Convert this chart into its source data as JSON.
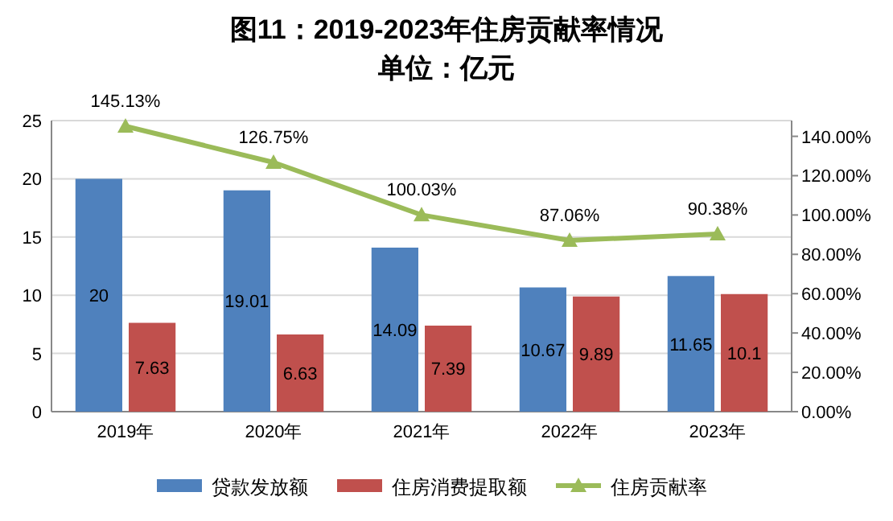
{
  "chart_data": {
    "type": "bar",
    "title": "图11：2019-2023年住房贡献率情况",
    "subtitle": "单位：亿元",
    "categories": [
      "2019年",
      "2020年",
      "2021年",
      "2022年",
      "2023年"
    ],
    "series": [
      {
        "name": "贷款发放额",
        "color": "#4f81bd",
        "values": [
          20,
          19.01,
          14.09,
          10.67,
          11.65
        ],
        "value_labels": [
          "20",
          "19.01",
          "14.09",
          "10.67",
          "11.65"
        ]
      },
      {
        "name": "住房消费提取额",
        "color": "#c0504d",
        "values": [
          7.63,
          6.63,
          7.39,
          9.89,
          10.1
        ],
        "value_labels": [
          "7.63",
          "6.63",
          "7.39",
          "9.89",
          "10.1"
        ]
      },
      {
        "name": "住房贡献率",
        "type": "line",
        "axis": "y2",
        "color": "#9bbb59",
        "marker": "triangle",
        "values": [
          145.13,
          126.75,
          100.03,
          87.06,
          90.38
        ],
        "value_labels": [
          "145.13%",
          "126.75%",
          "100.03%",
          "87.06%",
          "90.38%"
        ]
      }
    ],
    "ylim": [
      0,
      25
    ],
    "yticks": [
      0,
      5,
      10,
      15,
      20,
      25
    ],
    "y2lim": [
      0,
      148
    ],
    "y2ticks": [
      {
        "value": 0,
        "label": "0.00%"
      },
      {
        "value": 20,
        "label": "20.00%"
      },
      {
        "value": 40,
        "label": "40.00%"
      },
      {
        "value": 60,
        "label": "60.00%"
      },
      {
        "value": 80,
        "label": "80.00%"
      },
      {
        "value": 100,
        "label": "100.00%"
      },
      {
        "value": 120,
        "label": "120.00%"
      },
      {
        "value": 140,
        "label": "140.00%"
      }
    ],
    "grid": "y",
    "legend": "bottom"
  }
}
